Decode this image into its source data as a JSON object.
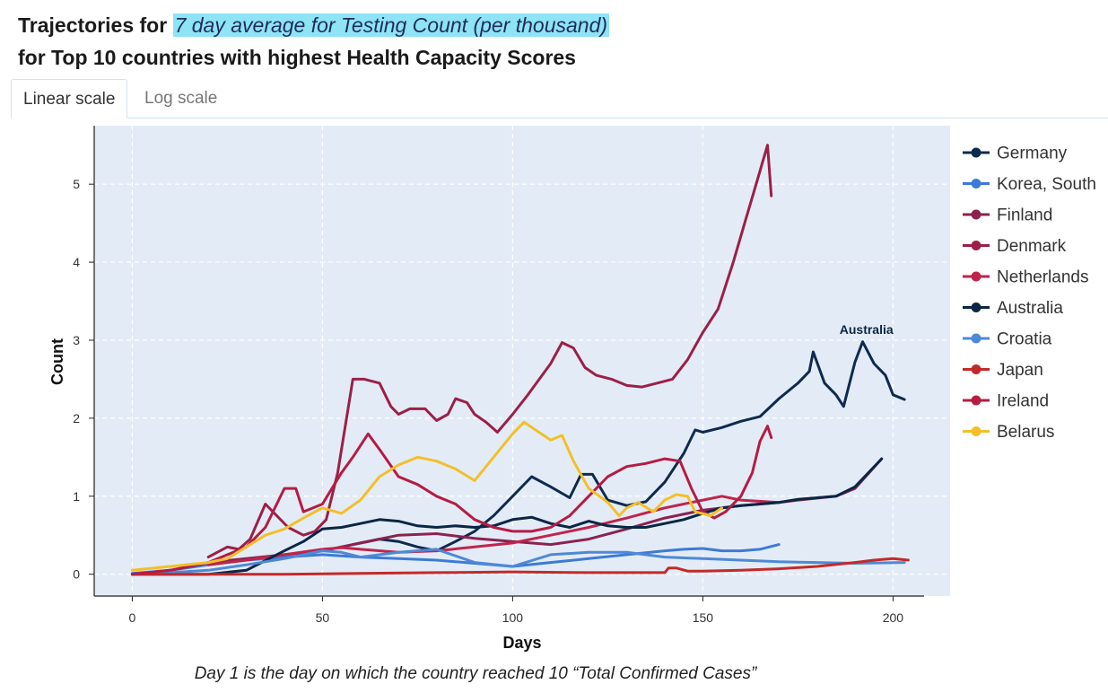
{
  "header": {
    "title_prefix": "Trajectories for ",
    "title_highlight": "7 day average for Testing Count (per thousand)",
    "subtitle": "for Top 10 countries with highest Health Capacity Scores"
  },
  "tabs": [
    {
      "label": "Linear scale",
      "active": true
    },
    {
      "label": "Log scale",
      "active": false
    }
  ],
  "caption": "Day 1 is the day on which the country reached 10 “Total Confirmed Cases”",
  "chart_data": {
    "type": "line",
    "xlabel": "Days",
    "ylabel": "Count",
    "xlim": [
      -10,
      215
    ],
    "ylim": [
      -0.28,
      5.75
    ],
    "xticks": [
      0,
      50,
      100,
      150,
      200
    ],
    "yticks": [
      0,
      1,
      2,
      3,
      4,
      5
    ],
    "grid": true,
    "legend_position": "right",
    "annotation": {
      "text": "Australia",
      "x": 193,
      "y": 3.08
    },
    "series": [
      {
        "name": "Germany",
        "color": "#0f2a4e",
        "points": [
          [
            58,
            0.38
          ],
          [
            65,
            0.45
          ],
          [
            70,
            0.42
          ],
          [
            75,
            0.35
          ],
          [
            80,
            0.3
          ],
          [
            85,
            0.42
          ],
          [
            90,
            0.55
          ],
          [
            95,
            0.75
          ],
          [
            100,
            1.0
          ],
          [
            105,
            1.25
          ],
          [
            110,
            1.12
          ],
          [
            115,
            0.98
          ],
          [
            118,
            1.28
          ],
          [
            121,
            1.28
          ],
          [
            125,
            0.95
          ],
          [
            130,
            0.88
          ],
          [
            135,
            0.93
          ],
          [
            140,
            1.18
          ],
          [
            145,
            1.55
          ],
          [
            148,
            1.85
          ],
          [
            150,
            1.82
          ],
          [
            155,
            1.88
          ],
          [
            160,
            1.96
          ],
          [
            165,
            2.02
          ],
          [
            170,
            2.25
          ],
          [
            175,
            2.45
          ],
          [
            178,
            2.6
          ],
          [
            179,
            2.85
          ],
          [
            182,
            2.45
          ],
          [
            185,
            2.3
          ],
          [
            187,
            2.15
          ],
          [
            190,
            2.72
          ],
          [
            192,
            2.98
          ],
          [
            195,
            2.7
          ],
          [
            198,
            2.55
          ],
          [
            200,
            2.3
          ],
          [
            203,
            2.24
          ]
        ]
      },
      {
        "name": "Korea, South",
        "color": "#3d7ad6",
        "points": [
          [
            0,
            0.01
          ],
          [
            10,
            0.05
          ],
          [
            20,
            0.12
          ],
          [
            30,
            0.18
          ],
          [
            40,
            0.22
          ],
          [
            50,
            0.25
          ],
          [
            60,
            0.22
          ],
          [
            70,
            0.2
          ],
          [
            80,
            0.18
          ],
          [
            90,
            0.14
          ],
          [
            100,
            0.1
          ],
          [
            110,
            0.15
          ],
          [
            120,
            0.2
          ],
          [
            130,
            0.25
          ],
          [
            140,
            0.3
          ],
          [
            145,
            0.32
          ],
          [
            150,
            0.33
          ],
          [
            155,
            0.3
          ],
          [
            160,
            0.3
          ],
          [
            165,
            0.32
          ],
          [
            170,
            0.38
          ]
        ]
      },
      {
        "name": "Finland",
        "color": "#8b2250",
        "points": [
          [
            0,
            0.0
          ],
          [
            10,
            0.05
          ],
          [
            20,
            0.15
          ],
          [
            30,
            0.2
          ],
          [
            40,
            0.25
          ],
          [
            50,
            0.3
          ],
          [
            60,
            0.4
          ],
          [
            70,
            0.5
          ],
          [
            80,
            0.52
          ],
          [
            90,
            0.46
          ],
          [
            100,
            0.42
          ],
          [
            110,
            0.38
          ],
          [
            120,
            0.45
          ],
          [
            130,
            0.58
          ],
          [
            140,
            0.72
          ],
          [
            150,
            0.82
          ],
          [
            160,
            0.88
          ],
          [
            170,
            0.92
          ],
          [
            175,
            0.95
          ],
          [
            185,
            1.0
          ],
          [
            190,
            1.1
          ],
          [
            197,
            1.48
          ]
        ]
      },
      {
        "name": "Denmark",
        "color": "#9c1f48",
        "points": [
          [
            20,
            0.22
          ],
          [
            25,
            0.35
          ],
          [
            28,
            0.32
          ],
          [
            31,
            0.45
          ],
          [
            35,
            0.9
          ],
          [
            38,
            0.75
          ],
          [
            41,
            0.6
          ],
          [
            45,
            0.5
          ],
          [
            48,
            0.55
          ],
          [
            51,
            0.7
          ],
          [
            54,
            1.3
          ],
          [
            57,
            2.2
          ],
          [
            58,
            2.5
          ],
          [
            61,
            2.5
          ],
          [
            65,
            2.45
          ],
          [
            68,
            2.15
          ],
          [
            70,
            2.05
          ],
          [
            73,
            2.12
          ],
          [
            77,
            2.12
          ],
          [
            80,
            1.97
          ],
          [
            83,
            2.05
          ],
          [
            85,
            2.25
          ],
          [
            88,
            2.2
          ],
          [
            90,
            2.05
          ],
          [
            93,
            1.95
          ],
          [
            96,
            1.82
          ],
          [
            100,
            2.05
          ],
          [
            104,
            2.3
          ],
          [
            107,
            2.5
          ],
          [
            110,
            2.7
          ],
          [
            113,
            2.97
          ],
          [
            116,
            2.9
          ],
          [
            119,
            2.65
          ],
          [
            122,
            2.55
          ],
          [
            126,
            2.5
          ],
          [
            130,
            2.42
          ],
          [
            134,
            2.4
          ],
          [
            138,
            2.45
          ],
          [
            142,
            2.5
          ],
          [
            146,
            2.75
          ],
          [
            150,
            3.1
          ],
          [
            154,
            3.4
          ],
          [
            158,
            4.0
          ],
          [
            161,
            4.5
          ],
          [
            164,
            5.0
          ],
          [
            167,
            5.5
          ],
          [
            168,
            4.85
          ]
        ]
      },
      {
        "name": "Netherlands",
        "color": "#c0244c",
        "points": [
          [
            20,
            0.12
          ],
          [
            30,
            0.18
          ],
          [
            40,
            0.25
          ],
          [
            50,
            0.32
          ],
          [
            55,
            0.34
          ],
          [
            60,
            0.32
          ],
          [
            70,
            0.28
          ],
          [
            80,
            0.3
          ],
          [
            90,
            0.35
          ],
          [
            100,
            0.4
          ],
          [
            110,
            0.5
          ],
          [
            120,
            0.6
          ],
          [
            130,
            0.72
          ],
          [
            140,
            0.85
          ],
          [
            150,
            0.95
          ],
          [
            155,
            1.0
          ],
          [
            160,
            0.95
          ],
          [
            170,
            0.92
          ]
        ]
      },
      {
        "name": "Australia",
        "color": "#0b2545",
        "points": [
          [
            0,
            0.0
          ],
          [
            20,
            0.0
          ],
          [
            30,
            0.05
          ],
          [
            40,
            0.3
          ],
          [
            45,
            0.42
          ],
          [
            50,
            0.58
          ],
          [
            55,
            0.6
          ],
          [
            60,
            0.65
          ],
          [
            65,
            0.7
          ],
          [
            70,
            0.68
          ],
          [
            75,
            0.62
          ],
          [
            80,
            0.6
          ],
          [
            85,
            0.62
          ],
          [
            90,
            0.6
          ],
          [
            95,
            0.62
          ],
          [
            100,
            0.7
          ],
          [
            105,
            0.73
          ],
          [
            110,
            0.65
          ],
          [
            115,
            0.6
          ],
          [
            120,
            0.68
          ],
          [
            125,
            0.62
          ],
          [
            130,
            0.6
          ],
          [
            135,
            0.6
          ],
          [
            140,
            0.65
          ],
          [
            145,
            0.7
          ],
          [
            150,
            0.78
          ],
          [
            155,
            0.85
          ],
          [
            160,
            0.88
          ],
          [
            165,
            0.9
          ],
          [
            170,
            0.92
          ],
          [
            175,
            0.96
          ],
          [
            180,
            0.98
          ],
          [
            185,
            1.0
          ],
          [
            190,
            1.12
          ],
          [
            197,
            1.48
          ]
        ]
      },
      {
        "name": "Croatia",
        "color": "#4f88d6",
        "points": [
          [
            0,
            0.0
          ],
          [
            10,
            0.02
          ],
          [
            20,
            0.05
          ],
          [
            30,
            0.12
          ],
          [
            40,
            0.2
          ],
          [
            50,
            0.3
          ],
          [
            55,
            0.28
          ],
          [
            60,
            0.22
          ],
          [
            70,
            0.28
          ],
          [
            80,
            0.32
          ],
          [
            90,
            0.15
          ],
          [
            100,
            0.1
          ],
          [
            110,
            0.25
          ],
          [
            120,
            0.28
          ],
          [
            130,
            0.28
          ],
          [
            140,
            0.22
          ],
          [
            150,
            0.2
          ],
          [
            160,
            0.18
          ],
          [
            170,
            0.16
          ],
          [
            180,
            0.15
          ],
          [
            190,
            0.14
          ],
          [
            203,
            0.15
          ]
        ]
      },
      {
        "name": "Japan",
        "color": "#c22a2a",
        "points": [
          [
            0,
            0.0
          ],
          [
            20,
            0.0
          ],
          [
            40,
            0.0
          ],
          [
            60,
            0.01
          ],
          [
            80,
            0.02
          ],
          [
            100,
            0.03
          ],
          [
            120,
            0.02
          ],
          [
            140,
            0.02
          ],
          [
            141,
            0.08
          ],
          [
            143,
            0.08
          ],
          [
            146,
            0.04
          ],
          [
            150,
            0.04
          ],
          [
            160,
            0.05
          ],
          [
            170,
            0.07
          ],
          [
            180,
            0.1
          ],
          [
            190,
            0.15
          ],
          [
            195,
            0.18
          ],
          [
            200,
            0.2
          ],
          [
            204,
            0.18
          ]
        ]
      },
      {
        "name": "Ireland",
        "color": "#b51c44",
        "points": [
          [
            0,
            0.0
          ],
          [
            10,
            0.05
          ],
          [
            20,
            0.15
          ],
          [
            30,
            0.35
          ],
          [
            35,
            0.6
          ],
          [
            38,
            0.9
          ],
          [
            40,
            1.1
          ],
          [
            43,
            1.1
          ],
          [
            45,
            0.8
          ],
          [
            50,
            0.9
          ],
          [
            55,
            1.3
          ],
          [
            58,
            1.5
          ],
          [
            62,
            1.8
          ],
          [
            65,
            1.6
          ],
          [
            70,
            1.25
          ],
          [
            75,
            1.15
          ],
          [
            80,
            1.0
          ],
          [
            85,
            0.9
          ],
          [
            90,
            0.7
          ],
          [
            95,
            0.6
          ],
          [
            100,
            0.55
          ],
          [
            105,
            0.55
          ],
          [
            110,
            0.6
          ],
          [
            115,
            0.75
          ],
          [
            120,
            1.0
          ],
          [
            125,
            1.25
          ],
          [
            130,
            1.38
          ],
          [
            135,
            1.42
          ],
          [
            140,
            1.48
          ],
          [
            144,
            1.45
          ],
          [
            147,
            1.1
          ],
          [
            150,
            0.8
          ],
          [
            153,
            0.72
          ],
          [
            156,
            0.8
          ],
          [
            160,
            1.0
          ],
          [
            163,
            1.3
          ],
          [
            165,
            1.7
          ],
          [
            167,
            1.9
          ],
          [
            168,
            1.75
          ]
        ]
      },
      {
        "name": "Belarus",
        "color": "#f3bf2a",
        "points": [
          [
            0,
            0.05
          ],
          [
            10,
            0.1
          ],
          [
            20,
            0.15
          ],
          [
            25,
            0.2
          ],
          [
            30,
            0.35
          ],
          [
            35,
            0.5
          ],
          [
            40,
            0.58
          ],
          [
            45,
            0.72
          ],
          [
            50,
            0.85
          ],
          [
            55,
            0.78
          ],
          [
            60,
            0.95
          ],
          [
            65,
            1.25
          ],
          [
            70,
            1.4
          ],
          [
            75,
            1.5
          ],
          [
            80,
            1.45
          ],
          [
            85,
            1.35
          ],
          [
            90,
            1.2
          ],
          [
            95,
            1.5
          ],
          [
            100,
            1.8
          ],
          [
            103,
            1.95
          ],
          [
            106,
            1.85
          ],
          [
            110,
            1.72
          ],
          [
            113,
            1.78
          ],
          [
            116,
            1.45
          ],
          [
            120,
            1.1
          ],
          [
            125,
            0.92
          ],
          [
            128,
            0.75
          ],
          [
            130,
            0.85
          ],
          [
            133,
            0.92
          ],
          [
            137,
            0.8
          ],
          [
            140,
            0.95
          ],
          [
            143,
            1.02
          ],
          [
            146,
            1.0
          ],
          [
            148,
            0.8
          ],
          [
            152,
            0.75
          ],
          [
            155,
            0.85
          ]
        ]
      }
    ]
  }
}
